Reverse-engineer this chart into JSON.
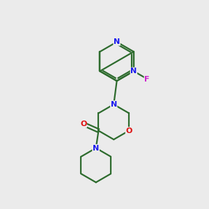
{
  "bg_color": "#ebebeb",
  "bond_color": "#2d6b2d",
  "N_color": "#1a1aee",
  "O_color": "#dd1111",
  "F_color": "#cc22cc",
  "lw": 1.6,
  "figsize": [
    3.0,
    3.0
  ],
  "dpi": 100,
  "xlim": [
    0,
    10
  ],
  "ylim": [
    0,
    10
  ]
}
